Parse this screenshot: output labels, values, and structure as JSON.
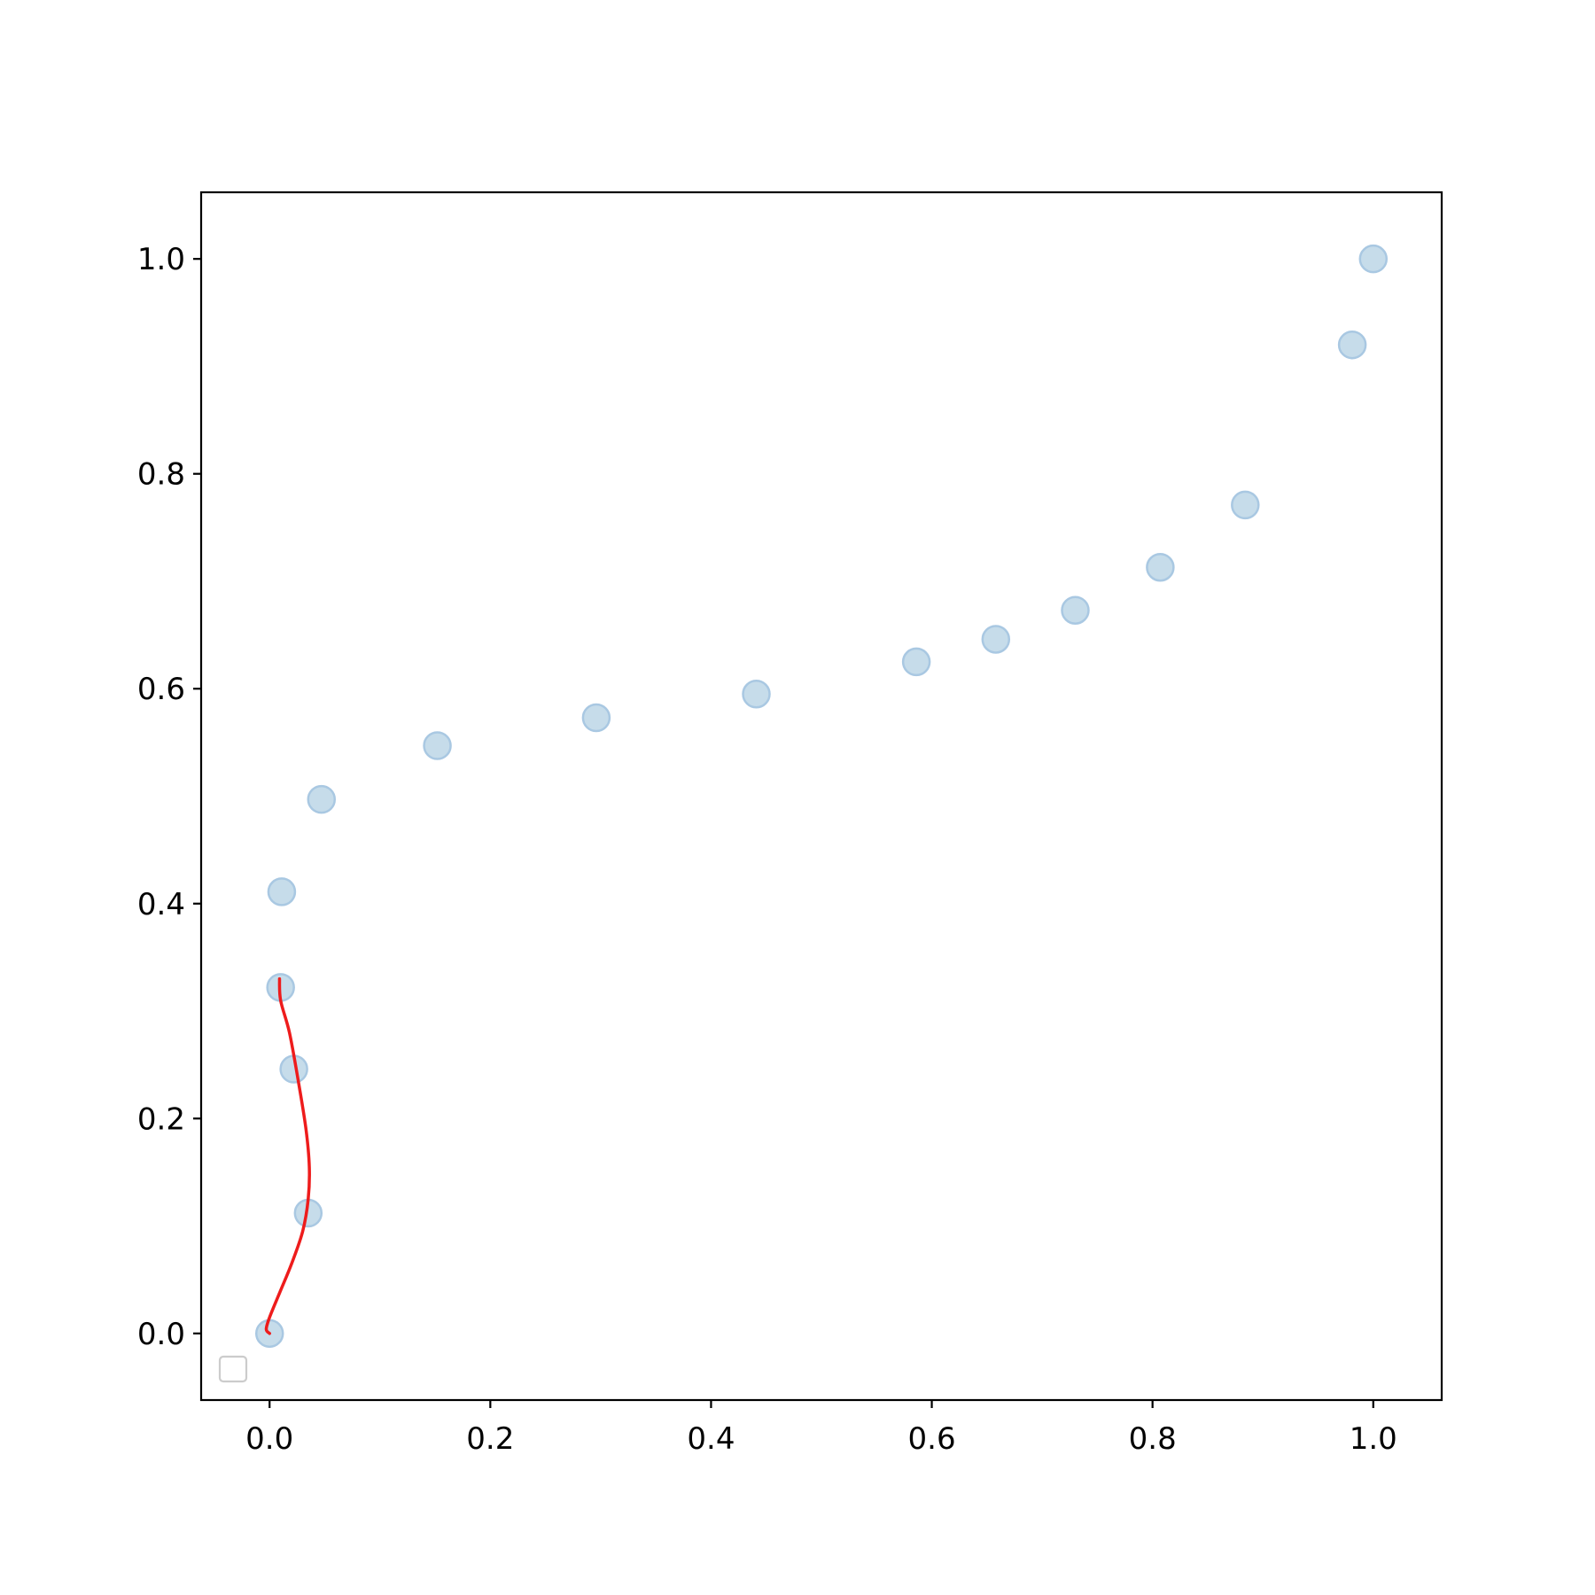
{
  "chart_data": {
    "type": "scatter",
    "title": "",
    "xlabel": "",
    "ylabel": "",
    "xlim": [
      -0.062,
      1.062
    ],
    "ylim": [
      -0.062,
      1.062
    ],
    "xticks": [
      "0.0",
      "0.2",
      "0.4",
      "0.6",
      "0.8",
      "1.0"
    ],
    "yticks": [
      "0.0",
      "0.2",
      "0.4",
      "0.6",
      "0.8",
      "1.0"
    ],
    "grid": false,
    "legend": {
      "placement": "lower-left",
      "entries": []
    },
    "series": [
      {
        "kind": "scatter",
        "color": "#c6dcea",
        "edge_color": "#a9c8e2",
        "x": [
          0.0,
          0.035,
          0.022,
          0.01,
          0.011,
          0.047,
          0.152,
          0.296,
          0.441,
          0.586,
          0.658,
          0.73,
          0.807,
          0.884,
          0.981,
          1.0
        ],
        "y": [
          0.0,
          0.112,
          0.246,
          0.322,
          0.411,
          0.497,
          0.547,
          0.573,
          0.595,
          0.625,
          0.646,
          0.673,
          0.713,
          0.771,
          0.92,
          1.0
        ]
      },
      {
        "kind": "line",
        "color": "#ee1c1c",
        "x": [
          0.0,
          -0.003,
          0.0,
          0.01,
          0.02,
          0.03,
          0.035,
          0.036,
          0.033,
          0.026,
          0.018,
          0.01,
          0.009
        ],
        "y": [
          0.0,
          0.004,
          0.015,
          0.04,
          0.065,
          0.095,
          0.125,
          0.155,
          0.19,
          0.235,
          0.28,
          0.31,
          0.33
        ]
      }
    ]
  }
}
